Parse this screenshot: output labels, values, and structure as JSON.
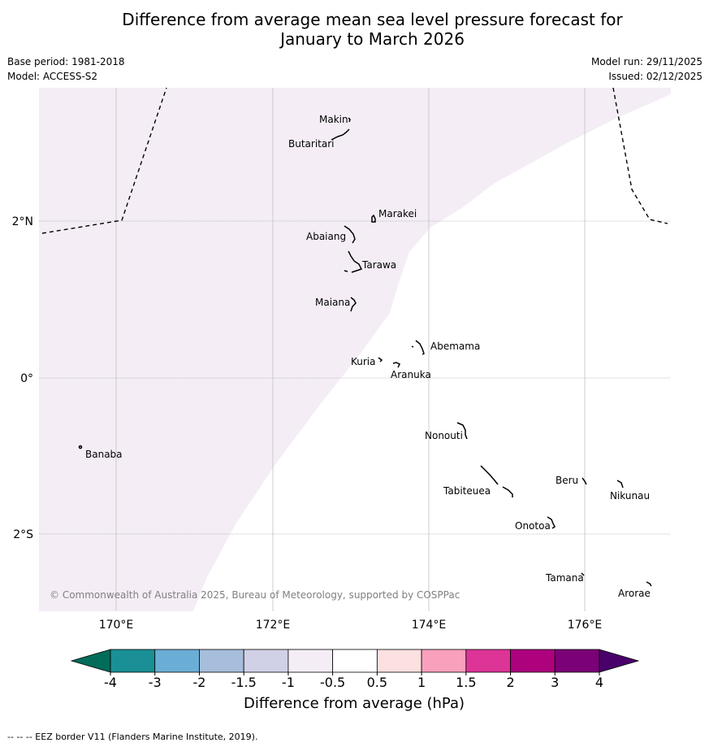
{
  "title_line1": "Difference from average mean sea level pressure forecast for",
  "title_line2": "January to March 2026",
  "base_period": "Base period: 1981-2018",
  "model": "Model: ACCESS-S2",
  "model_run": "Model run: 29/11/2025",
  "issued": "Issued: 02/12/2025",
  "copyright": "© Commonwealth of Australia 2025, Bureau of Meteorology, supported by COSPPac",
  "places": {
    "makin": "Makin",
    "butaritari": "Butaritari",
    "marakei": "Marakei",
    "abaiang": "Abaiang",
    "tarawa": "Tarawa",
    "maiana": "Maiana",
    "abemama": "Abemama",
    "kuria": "Kuria",
    "aranuka": "Aranuka",
    "nonouti": "Nonouti",
    "banaba": "Banaba",
    "beru": "Beru",
    "nikunau": "Nikunau",
    "tabiteuea": "Tabiteuea",
    "onotoa": "Onotoa",
    "tamana": "Tamana",
    "arorae": "Arorae"
  },
  "axes": {
    "x_ticks": [
      "170°E",
      "172°E",
      "174°E",
      "176°E"
    ],
    "y_ticks": [
      "2°N",
      "0°",
      "2°S"
    ]
  },
  "colorbar": {
    "label": "Difference from average (hPa)",
    "ticks": [
      "-4",
      "-3",
      "-2",
      "-1.5",
      "-1",
      "-0.5",
      "0.5",
      "1",
      "1.5",
      "2",
      "3",
      "4"
    ],
    "colors": [
      "#1a9096",
      "#6aaed6",
      "#a6bddb",
      "#d0d1e6",
      "#f4edf6",
      "#ffffff",
      "#fde0e0",
      "#f9a0bd",
      "#dd3497",
      "#ae017e",
      "#7a0177"
    ],
    "under_color": "#016c59",
    "over_color": "#49006a"
  },
  "map_colors": {
    "shade": "#f4edf6",
    "land": "#000000",
    "grid": "#c0c0c0"
  },
  "footer": "--  --  -- EEZ border V11 (Flanders Marine Institute, 2019)."
}
